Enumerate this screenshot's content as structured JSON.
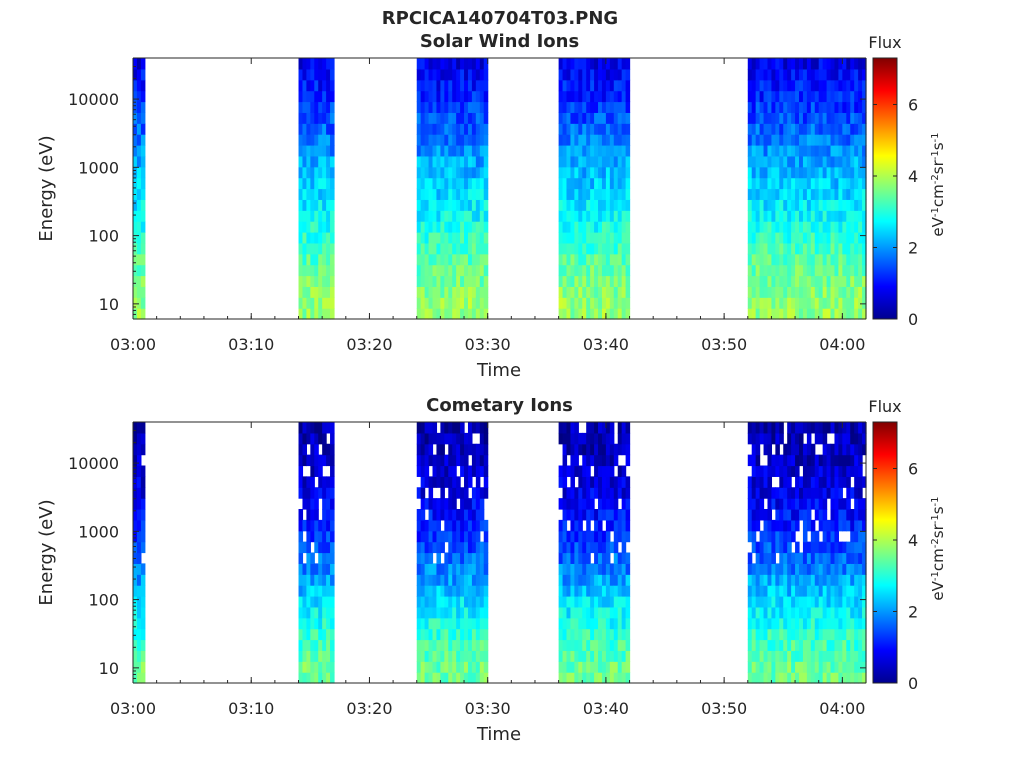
{
  "figure_title": "RPCICA140704T03.PNG",
  "chart_data": [
    {
      "type": "heatmap",
      "title": "Solar Wind Ions",
      "xlabel": "Time",
      "ylabel": "Energy (eV)",
      "x_ticks": [
        "03:00",
        "03:10",
        "03:20",
        "03:30",
        "03:40",
        "03:50",
        "04:00"
      ],
      "x_range": [
        "03:00",
        "04:02"
      ],
      "y_scale": "log",
      "y_ticks": [
        "10",
        "100",
        "1000",
        "10000"
      ],
      "y_range": [
        6,
        40000
      ],
      "colorbar": {
        "title": "Flux",
        "label": "eV-1cm-2sr-1s-1",
        "ticks": [
          "0",
          "2",
          "4",
          "6"
        ],
        "range": [
          0,
          7.3
        ],
        "colormap": "jet"
      },
      "data_intervals": [
        {
          "start": "03:00",
          "end": "03:01"
        },
        {
          "start": "03:14",
          "end": "03:17"
        },
        {
          "start": "03:24",
          "end": "03:30"
        },
        {
          "start": "03:36",
          "end": "03:42"
        },
        {
          "start": "03:52",
          "end": "04:02"
        }
      ],
      "energy_profile": [
        {
          "energy_eV": 10,
          "flux": 3.8
        },
        {
          "energy_eV": 30,
          "flux": 3.5
        },
        {
          "energy_eV": 100,
          "flux": 3.0
        },
        {
          "energy_eV": 300,
          "flux": 2.6
        },
        {
          "energy_eV": 1000,
          "flux": 2.2
        },
        {
          "energy_eV": 3000,
          "flux": 1.7
        },
        {
          "energy_eV": 10000,
          "flux": 1.2
        },
        {
          "energy_eV": 40000,
          "flux": 0.7
        }
      ]
    },
    {
      "type": "heatmap",
      "title": "Cometary Ions",
      "xlabel": "Time",
      "ylabel": "Energy (eV)",
      "x_ticks": [
        "03:00",
        "03:10",
        "03:20",
        "03:30",
        "03:40",
        "03:50",
        "04:00"
      ],
      "x_range": [
        "03:00",
        "04:02"
      ],
      "y_scale": "log",
      "y_ticks": [
        "10",
        "100",
        "1000",
        "10000"
      ],
      "y_range": [
        6,
        40000
      ],
      "colorbar": {
        "title": "Flux",
        "label": "eV-1cm-2sr-1s-1",
        "ticks": [
          "0",
          "2",
          "4",
          "6"
        ],
        "range": [
          0,
          7.3
        ],
        "colormap": "jet"
      },
      "data_intervals": [
        {
          "start": "03:00",
          "end": "03:01"
        },
        {
          "start": "03:14",
          "end": "03:17"
        },
        {
          "start": "03:24",
          "end": "03:30"
        },
        {
          "start": "03:36",
          "end": "03:42"
        },
        {
          "start": "03:52",
          "end": "04:02"
        }
      ],
      "energy_profile": [
        {
          "energy_eV": 10,
          "flux": 3.5
        },
        {
          "energy_eV": 30,
          "flux": 3.1
        },
        {
          "energy_eV": 100,
          "flux": 2.5
        },
        {
          "energy_eV": 300,
          "flux": 1.8
        },
        {
          "energy_eV": 1000,
          "flux": 1.2
        },
        {
          "energy_eV": 3000,
          "flux": 0.8
        },
        {
          "energy_eV": 10000,
          "flux": 0.5
        },
        {
          "energy_eV": 40000,
          "flux": 0.3
        }
      ]
    }
  ]
}
